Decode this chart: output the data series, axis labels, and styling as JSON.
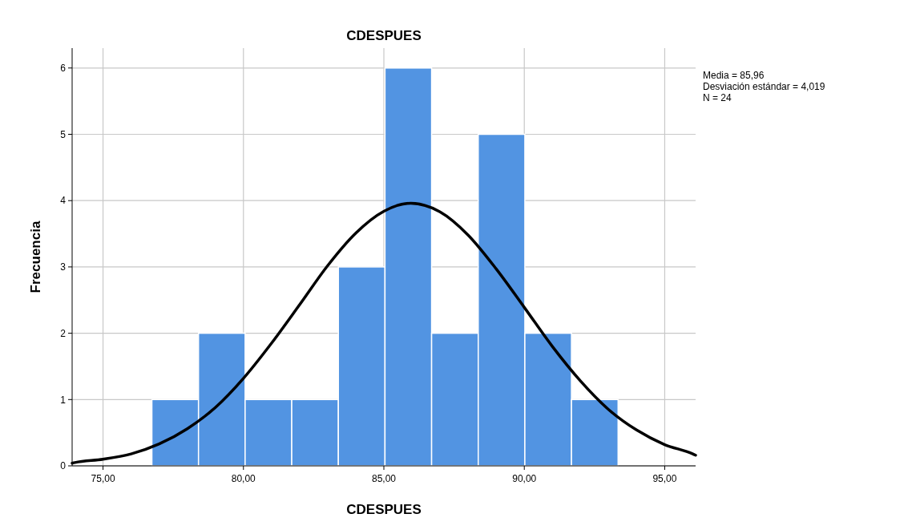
{
  "chart_data": {
    "type": "histogram",
    "title": "CDESPUES",
    "xlabel": "CDESPUES",
    "ylabel": "Frecuencia",
    "annotations": [
      "Media = 85,96",
      "Desviación estándar = 4,019",
      "N = 24"
    ],
    "bins": [
      76.74,
      78.4,
      80.06,
      81.72,
      83.38,
      85.04,
      86.7,
      88.36,
      90.02,
      91.68,
      93.34
    ],
    "values": [
      1,
      2,
      1,
      1,
      3,
      6,
      2,
      5,
      2,
      1
    ],
    "color": "#5294e2",
    "series": [
      {
        "type": "line",
        "color": "#000000",
        "x": [
          73.9,
          74,
          75,
          76,
          77,
          78,
          79,
          80,
          81,
          82,
          83,
          84,
          85,
          85.96,
          87,
          88,
          89,
          90,
          91,
          92,
          93,
          94,
          95,
          96,
          96.1
        ],
        "values": [
          0.04,
          0.05,
          0.1,
          0.18,
          0.33,
          0.56,
          0.88,
          1.32,
          1.85,
          2.43,
          3.02,
          3.51,
          3.84,
          3.96,
          3.83,
          3.48,
          2.97,
          2.39,
          1.8,
          1.28,
          0.85,
          0.54,
          0.32,
          0.18,
          0.16
        ]
      }
    ],
    "xlim": [
      73.9,
      96.1
    ],
    "ylim": [
      0,
      6.3
    ],
    "xticks": [
      {
        "value": 75,
        "label": "75,00"
      },
      {
        "value": 80,
        "label": "80,00"
      },
      {
        "value": 85,
        "label": "85,00"
      },
      {
        "value": 90,
        "label": "90,00"
      },
      {
        "value": 95,
        "label": "95,00"
      }
    ],
    "yticks": [
      0,
      1,
      2,
      3,
      4,
      5,
      6
    ],
    "grid": true
  }
}
